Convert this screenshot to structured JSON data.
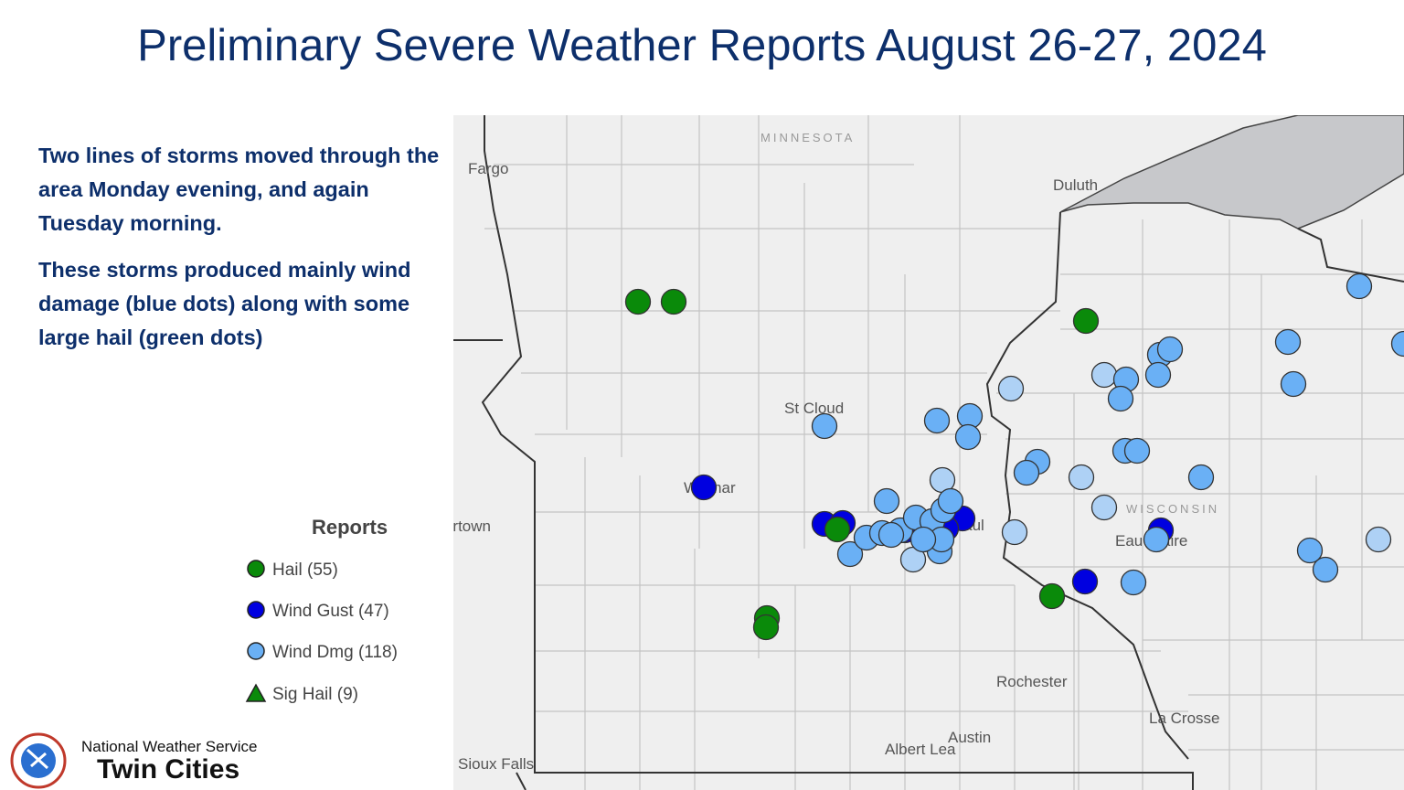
{
  "title": "Preliminary Severe Weather Reports August 26-27, 2024",
  "description": [
    "Two lines of storms moved through the area Monday evening, and again Tuesday morning.",
    "These storms produced mainly wind damage (blue dots) along with some large hail (green dots)"
  ],
  "legend": {
    "title": "Reports",
    "items": [
      "Hail (55)",
      "Wind Gust (47)",
      "Wind Dmg (118)",
      "Sig Hail (9)"
    ]
  },
  "map_labels": {
    "state_mn": "MINNESOTA",
    "state_wi": "WISCONSIN",
    "fargo": "Fargo",
    "duluth": "Duluth",
    "st_cloud": "St Cloud",
    "willmar": "Willmar",
    "watertown": "Watertown",
    "st_paul": "St Paul",
    "eau_claire": "Eau Claire",
    "rochester": "Rochester",
    "la_crosse": "La Crosse",
    "austin": "Austin",
    "albert_lea": "Albert Lea",
    "sioux_falls": "Sioux Falls"
  },
  "branding": {
    "agency": "National Weather Service",
    "office": "Twin Cities"
  }
}
